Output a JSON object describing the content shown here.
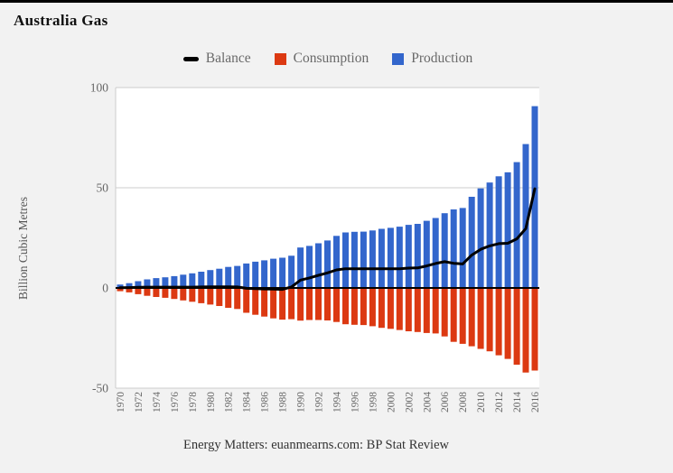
{
  "page": {
    "title": "Australia Gas",
    "y_axis_title": "Billion Cubic Metres",
    "footer": "Energy Matters: euanmearns.com: BP Stat Review",
    "background_color": "#f2f2f2",
    "top_border_color": "#000000",
    "plot_background_color": "#ffffff",
    "gridline_color": "#cccccc"
  },
  "legend": {
    "items": [
      {
        "label": "Balance",
        "marker": "dash",
        "color": "#000000"
      },
      {
        "label": "Consumption",
        "marker": "square",
        "color": "#dc3912"
      },
      {
        "label": "Production",
        "marker": "square",
        "color": "#3366cc"
      }
    ]
  },
  "chart_data": {
    "type": "bar",
    "title": "Australia Gas",
    "xlabel": "",
    "ylabel": "Billion Cubic Metres",
    "ylim": [
      -50,
      100
    ],
    "yticks": [
      100,
      50,
      0,
      -50
    ],
    "x_tick_step": 2,
    "grid": true,
    "legend_position": "top",
    "source": "Energy Matters: euanmearns.com: BP Stat Review",
    "units": "Billion Cubic Metres",
    "categories": [
      1970,
      1971,
      1972,
      1973,
      1974,
      1975,
      1976,
      1977,
      1978,
      1979,
      1980,
      1981,
      1982,
      1983,
      1984,
      1985,
      1986,
      1987,
      1988,
      1989,
      1990,
      1991,
      1992,
      1993,
      1994,
      1995,
      1996,
      1997,
      1998,
      1999,
      2000,
      2001,
      2002,
      2003,
      2004,
      2005,
      2006,
      2007,
      2008,
      2009,
      2010,
      2011,
      2012,
      2013,
      2014,
      2015,
      2016
    ],
    "series": [
      {
        "name": "Production",
        "type": "bar",
        "color": "#3366cc",
        "values": [
          1.7,
          2.4,
          3.4,
          4.3,
          4.9,
          5.3,
          5.9,
          6.6,
          7.3,
          8.1,
          8.9,
          9.6,
          10.5,
          11.0,
          12.2,
          13.1,
          13.8,
          14.6,
          15.1,
          16.1,
          20.2,
          21.0,
          22.3,
          23.7,
          26.0,
          27.7,
          28.0,
          28.1,
          28.7,
          29.5,
          30.0,
          30.6,
          31.5,
          32.0,
          33.5,
          34.9,
          37.3,
          39.2,
          39.9,
          45.5,
          49.7,
          52.6,
          55.7,
          57.7,
          62.8,
          71.8,
          90.7
        ]
      },
      {
        "name": "Consumption",
        "type": "bar",
        "color": "#dc3912",
        "values": [
          -1.6,
          -2.2,
          -3.1,
          -3.9,
          -4.5,
          -4.9,
          -5.5,
          -6.2,
          -6.9,
          -7.6,
          -8.3,
          -9.0,
          -9.9,
          -10.5,
          -12.4,
          -13.4,
          -14.3,
          -15.2,
          -15.8,
          -15.6,
          -16.3,
          -16.0,
          -16.0,
          -16.2,
          -17.0,
          -18.1,
          -18.4,
          -18.5,
          -19.1,
          -19.9,
          -20.4,
          -21.0,
          -21.6,
          -22.0,
          -22.5,
          -22.7,
          -24.2,
          -26.9,
          -27.9,
          -29.1,
          -30.4,
          -31.6,
          -33.6,
          -35.4,
          -38.3,
          -42.2,
          -41.2
        ]
      },
      {
        "name": "Balance",
        "type": "line",
        "color": "#000000",
        "values": [
          0.1,
          0.2,
          0.3,
          0.4,
          0.4,
          0.4,
          0.4,
          0.4,
          0.4,
          0.5,
          0.6,
          0.6,
          0.6,
          0.5,
          -0.2,
          -0.3,
          -0.5,
          -0.6,
          -0.7,
          0.5,
          3.9,
          5.0,
          6.3,
          7.5,
          9.0,
          9.6,
          9.6,
          9.6,
          9.6,
          9.6,
          9.6,
          9.6,
          9.9,
          10.0,
          11.0,
          12.2,
          13.1,
          12.3,
          12.0,
          16.4,
          19.3,
          21.0,
          22.1,
          22.3,
          24.5,
          29.6,
          49.5
        ]
      }
    ]
  }
}
